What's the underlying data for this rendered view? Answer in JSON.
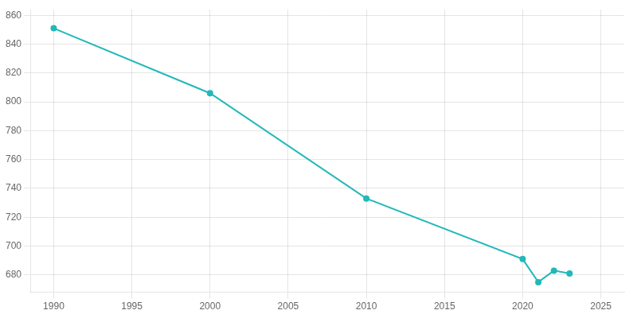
{
  "chart_data": {
    "type": "line",
    "x": [
      1990,
      2000,
      2010,
      2020,
      2021,
      2022,
      2023
    ],
    "values": [
      851,
      806,
      733,
      691,
      675,
      683,
      681
    ],
    "color": "#22b8b8",
    "marker": "circle",
    "xlim": [
      1988.5,
      2026.5
    ],
    "xticks": [
      1990,
      1995,
      2000,
      2005,
      2010,
      2015,
      2020,
      2025
    ],
    "ylim": [
      668,
      864
    ],
    "yticks": [
      680,
      700,
      720,
      740,
      760,
      780,
      800,
      820,
      840,
      860
    ],
    "grid": true
  }
}
